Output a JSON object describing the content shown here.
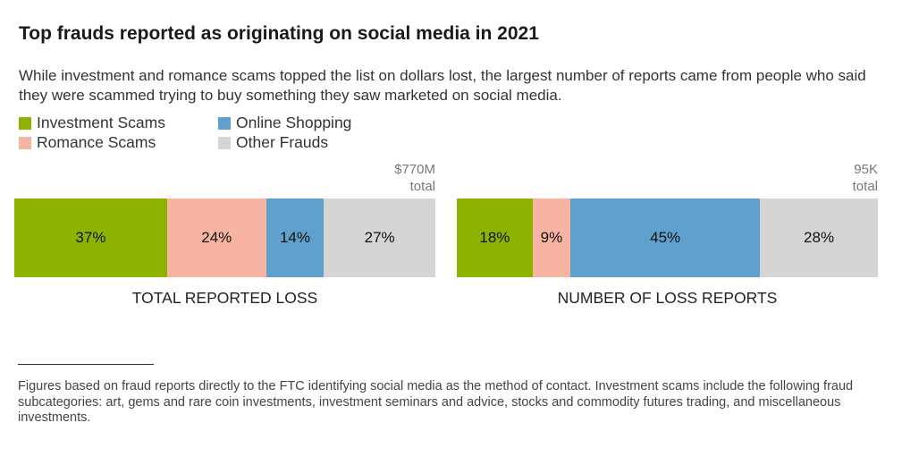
{
  "title": "Top frauds reported as originating on social media in 2021",
  "subtitle": "While investment and romance scams topped the list on dollars lost, the largest number of reports came from people who said they were scammed trying to buy something they saw marketed on social media.",
  "legend": [
    {
      "label": "Investment Scams",
      "color": "#8db200"
    },
    {
      "label": "Romance Scams",
      "color": "#f7b4a2"
    },
    {
      "label": "Online Shopping",
      "color": "#5fa1cc"
    },
    {
      "label": "Other Frauds",
      "color": "#d5d5d5"
    }
  ],
  "chart_data": [
    {
      "type": "bar",
      "orientation": "horizontal-stacked",
      "xlabel": "TOTAL REPORTED LOSS",
      "total_line1": "$770M",
      "total_line2": "total",
      "categories": [
        "Investment Scams",
        "Romance Scams",
        "Online Shopping",
        "Other Frauds"
      ],
      "values": [
        37,
        24,
        14,
        27
      ],
      "labels": [
        "37%",
        "24%",
        "14%",
        "27%"
      ]
    },
    {
      "type": "bar",
      "orientation": "horizontal-stacked",
      "xlabel": "NUMBER OF LOSS REPORTS",
      "total_line1": "95K",
      "total_line2": "total",
      "categories": [
        "Investment Scams",
        "Romance Scams",
        "Online Shopping",
        "Other Frauds"
      ],
      "values": [
        18,
        9,
        45,
        28
      ],
      "labels": [
        "18%",
        "9%",
        "45%",
        "28%"
      ]
    }
  ],
  "footnote": "Figures based on fraud reports directly to the FTC identifying social media as the method of contact. Investment scams include the following fraud subcategories: art, gems and rare coin investments, investment seminars and advice, stocks and commodity futures trading, and miscellaneous investments."
}
